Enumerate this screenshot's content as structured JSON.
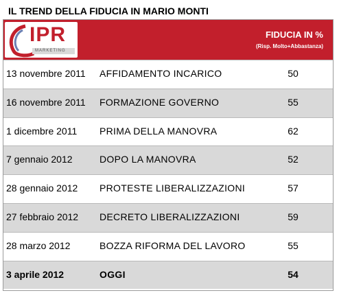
{
  "title": "IL TREND DELLA FIDUCIA IN MARIO MONTI",
  "logo": {
    "text": "IPR",
    "subtext": "MARKETING"
  },
  "header": {
    "column_label": "FIDUCIA IN %",
    "column_sublabel": "(Risp. Molto+Abbastanza)"
  },
  "colors": {
    "header_bg": "#c21f2c",
    "alt_row": "#d9d9d9"
  },
  "chart_data": {
    "type": "table",
    "title": "IL TREND DELLA FIDUCIA IN MARIO MONTI",
    "columns": [
      "",
      "",
      "FIDUCIA IN % (Risp. Molto+Abbastanza)"
    ],
    "rows": [
      {
        "date": "13 novembre 2011",
        "event": "AFFIDAMENTO INCARICO",
        "value": 50
      },
      {
        "date": "16 novembre 2011",
        "event": "FORMAZIONE GOVERNO",
        "value": 55
      },
      {
        "date": "1 dicembre 2011",
        "event": "PRIMA DELLA MANOVRA",
        "value": 62
      },
      {
        "date": "7 gennaio 2012",
        "event": "DOPO LA MANOVRA",
        "value": 52
      },
      {
        "date": "28 gennaio 2012",
        "event": "PROTESTE LIBERALIZZAZIONI",
        "value": 57
      },
      {
        "date": "27 febbraio 2012",
        "event": "DECRETO LIBERALIZZAZIONI",
        "value": 59
      },
      {
        "date": "28 marzo 2012",
        "event": "BOZZA RIFORMA DEL LAVORO",
        "value": 55
      },
      {
        "date": "3 aprile 2012",
        "event": "OGGI",
        "value": 54,
        "highlight": true
      }
    ]
  }
}
